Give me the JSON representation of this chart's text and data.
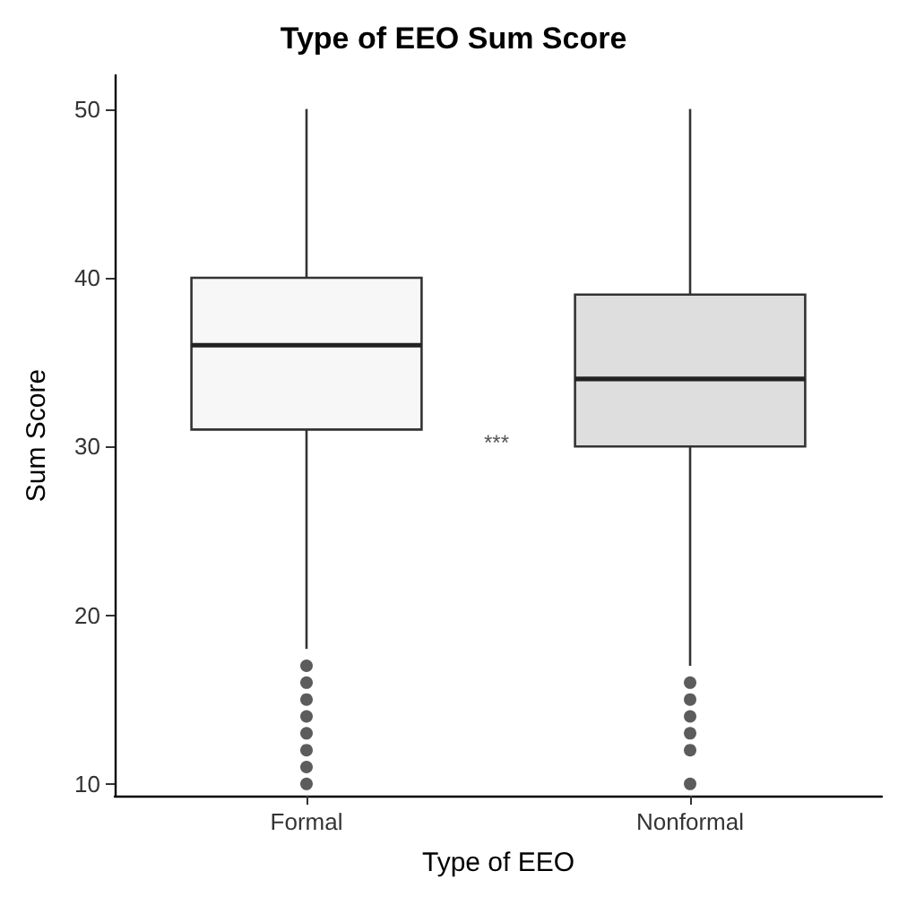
{
  "chart_data": {
    "type": "box",
    "title": "Type of EEO Sum Score",
    "xlabel": "Type of EEO",
    "ylabel": "Sum Score",
    "categories": [
      "Formal",
      "Nonformal"
    ],
    "colors": [
      "#f7f7f7",
      "#dedede"
    ],
    "boxes": [
      {
        "low": 18,
        "q1": 31,
        "median": 36,
        "q3": 40,
        "high": 50,
        "outliers": [
          17,
          16,
          15,
          14,
          13,
          12,
          11,
          10
        ]
      },
      {
        "low": 17,
        "q1": 30,
        "median": 34,
        "q3": 39,
        "high": 50,
        "outliers": [
          16,
          15,
          14,
          13,
          12,
          10
        ]
      }
    ],
    "ylim": [
      9.3,
      52
    ],
    "yticks": [
      10,
      20,
      30,
      40,
      50
    ],
    "annotations": [
      "***"
    ]
  }
}
